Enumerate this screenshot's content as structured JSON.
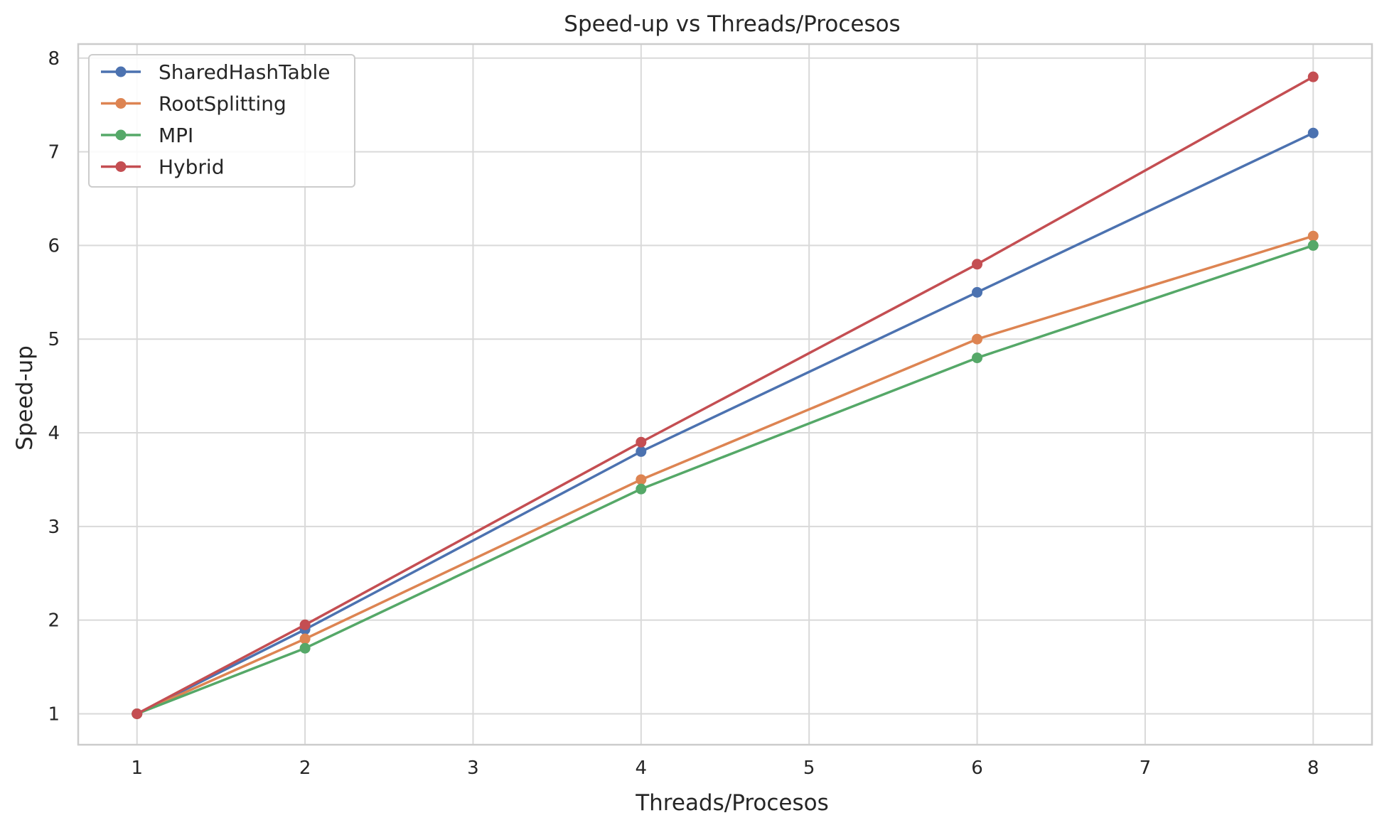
{
  "chart_data": {
    "type": "line",
    "title": "Speed-up vs Threads/Procesos",
    "xlabel": "Threads/Procesos",
    "ylabel": "Speed-up",
    "x": [
      1,
      2,
      4,
      6,
      8
    ],
    "xlim": [
      0.65,
      8.35
    ],
    "ylim": [
      0.67,
      8.15
    ],
    "xticks": [
      1,
      2,
      3,
      4,
      5,
      6,
      7,
      8
    ],
    "yticks": [
      1,
      2,
      3,
      4,
      5,
      6,
      7,
      8
    ],
    "grid": true,
    "legend_position": "top-left",
    "markers": true,
    "series": [
      {
        "name": "SharedHashTable",
        "color": "#4c72b0",
        "values": [
          1.0,
          1.9,
          3.8,
          5.5,
          7.2
        ]
      },
      {
        "name": "RootSplitting",
        "color": "#dd8452",
        "values": [
          1.0,
          1.8,
          3.5,
          5.0,
          6.1
        ]
      },
      {
        "name": "MPI",
        "color": "#55a868",
        "values": [
          1.0,
          1.7,
          3.4,
          4.8,
          6.0
        ]
      },
      {
        "name": "Hybrid",
        "color": "#c44e52",
        "values": [
          1.0,
          1.95,
          3.9,
          5.8,
          7.8
        ]
      }
    ]
  }
}
